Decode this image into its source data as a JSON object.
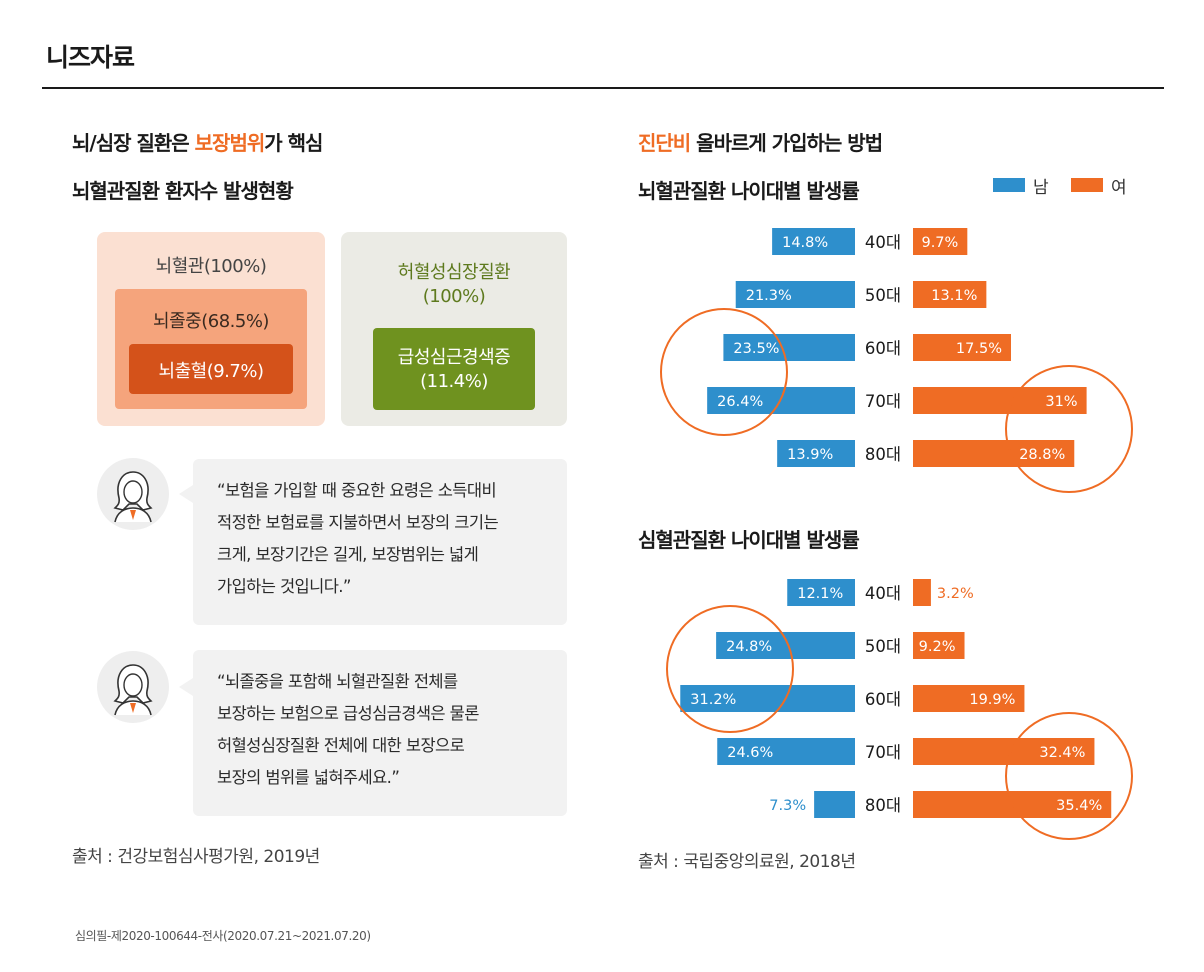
{
  "page": {
    "title": "니즈자료",
    "footnote": "심의필-제2020-100644-전사(2020.07.21~2021.07.20)"
  },
  "left": {
    "heading_pre": "뇌/심장 질환은 ",
    "heading_hl": "보장범위",
    "heading_post": "가 핵심",
    "subheading": "뇌혈관질환 환자수 발생현황",
    "box1": {
      "outer": "뇌혈관(100%)",
      "middle": "뇌졸중(68.5%)",
      "inner": "뇌출혈(9.7%)"
    },
    "box2": {
      "outer_line1": "허혈성심장질환",
      "outer_line2": "(100%)",
      "inner_line1": "급성심근경색증",
      "inner_line2": "(11.4%)"
    },
    "quote1": [
      "“보험을 가입할 때 중요한 요령은 소득대비",
      "적정한 보험료를 지불하면서 보장의 크기는",
      "크게, 보장기간은 길게, 보장범위는 넓게",
      "가입하는 것입니다.”"
    ],
    "quote2": [
      "“뇌졸중을 포함해 뇌혈관질환 전체를",
      "보장하는 보험으로 급성심금경색은 물론",
      "허혈성심장질환 전체에 대한 보장으로",
      "보장의 범위를 넓혀주세요.”"
    ],
    "source": "출처 : 건강보험심사평가원, 2019년"
  },
  "right": {
    "heading_hl": "진단비",
    "heading_post": " 올바르게 가입하는 방법",
    "legend": {
      "male": "남",
      "female": "여",
      "male_color": "#2e8fcc",
      "female_color": "#ef6c24"
    },
    "source": "출처 : 국립중앙의료원, 2018년"
  },
  "chart_data": [
    {
      "type": "bar",
      "title": "뇌혈관질환 나이대별 발생률",
      "categories": [
        "40대",
        "50대",
        "60대",
        "70대",
        "80대"
      ],
      "series": [
        {
          "name": "남",
          "values": [
            14.8,
            21.3,
            23.5,
            26.4,
            13.9
          ],
          "labels": [
            "14.8%",
            "21.3%",
            "23.5%",
            "26.4%",
            "13.9%"
          ]
        },
        {
          "name": "여",
          "values": [
            9.7,
            13.1,
            17.5,
            31,
            28.8
          ],
          "labels": [
            "9.7%",
            "13.1%",
            "17.5%",
            "31%",
            "28.8%"
          ]
        }
      ]
    },
    {
      "type": "bar",
      "title": "심혈관질환 나이대별 발생률",
      "categories": [
        "40대",
        "50대",
        "60대",
        "70대",
        "80대"
      ],
      "series": [
        {
          "name": "남",
          "values": [
            12.1,
            24.8,
            31.2,
            24.6,
            7.3
          ],
          "labels": [
            "12.1%",
            "24.8%",
            "31.2%",
            "24.6%",
            "7.3%"
          ]
        },
        {
          "name": "여",
          "values": [
            3.2,
            9.2,
            19.9,
            32.4,
            35.4
          ],
          "labels": [
            "3.2%",
            "9.2%",
            "19.9%",
            "32.4%",
            "35.4%"
          ]
        }
      ]
    }
  ]
}
